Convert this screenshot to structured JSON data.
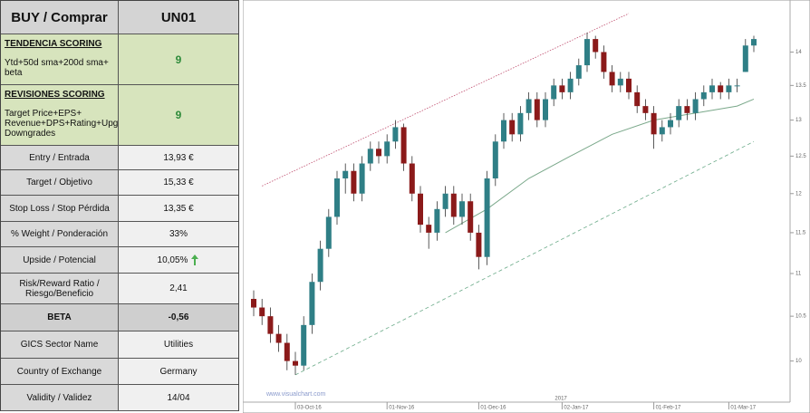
{
  "table": {
    "header": [
      "BUY / Comprar",
      "UN01"
    ],
    "scoring": [
      {
        "title": "TENDENCIA SCORING",
        "text": "Ytd+50d sma+200d  sma+ beta",
        "value": "9"
      },
      {
        "title": "REVISIONES SCORING",
        "text": "Target Price+EPS+ Revenue+DPS+Rating+Upgrades-Downgrades",
        "value": "9"
      }
    ],
    "rows": [
      [
        "Entry / Entrada",
        "13,93 €"
      ],
      [
        "Target / Objetivo",
        "15,33 €"
      ],
      [
        "Stop Loss / Stop Pérdida",
        "13,35 €"
      ],
      [
        "% Weight / Ponderación",
        "33%"
      ],
      [
        "Upside / Potencial",
        "10,05%"
      ],
      [
        "Risk/Reward  Ratio / Riesgo/Beneficio",
        "2,41"
      ],
      [
        "BETA",
        "-0,56"
      ],
      [
        "GICS Sector Name",
        "Utilities"
      ],
      [
        "Country of Exchange",
        "Germany"
      ],
      [
        "Validity / Validez",
        "14/04"
      ]
    ]
  },
  "chart_data": {
    "type": "candlestick",
    "log": true,
    "ylim": [
      9.6,
      14.7
    ],
    "yticks": [
      10,
      10.5,
      11,
      11.5,
      12,
      12.5,
      13,
      13.5,
      14
    ],
    "xticks": [
      {
        "value": 5,
        "label": "03-Oct-16"
      },
      {
        "value": 16,
        "label": "01-Nov-16"
      },
      {
        "value": 27,
        "label": "01-Dec-16"
      },
      {
        "value": 37,
        "label": "02-Jan-17"
      },
      {
        "value": 48,
        "label": "01-Feb-17"
      },
      {
        "value": 57,
        "label": "01-Mar-17"
      }
    ],
    "year_label": {
      "value": 37,
      "label": "2017"
    },
    "up_color": "#2f7f86",
    "down_color": "#8b1a1a",
    "candles": [
      [
        10.7,
        10.8,
        10.5,
        10.6
      ],
      [
        10.6,
        10.7,
        10.4,
        10.5
      ],
      [
        10.5,
        10.6,
        10.2,
        10.3
      ],
      [
        10.3,
        10.4,
        10.1,
        10.2
      ],
      [
        10.2,
        10.3,
        9.9,
        10.0
      ],
      [
        10.0,
        10.1,
        9.85,
        9.95
      ],
      [
        9.95,
        10.5,
        9.9,
        10.4
      ],
      [
        10.4,
        11.0,
        10.3,
        10.9
      ],
      [
        10.9,
        11.4,
        10.8,
        11.3
      ],
      [
        11.3,
        11.8,
        11.2,
        11.7
      ],
      [
        11.7,
        12.3,
        11.6,
        12.2
      ],
      [
        12.2,
        12.4,
        12.0,
        12.3
      ],
      [
        12.3,
        12.4,
        11.9,
        12.0
      ],
      [
        12.0,
        12.5,
        11.9,
        12.4
      ],
      [
        12.4,
        12.7,
        12.3,
        12.6
      ],
      [
        12.6,
        12.7,
        12.4,
        12.5
      ],
      [
        12.5,
        12.8,
        12.4,
        12.7
      ],
      [
        12.7,
        13.0,
        12.6,
        12.9
      ],
      [
        12.9,
        12.95,
        12.3,
        12.4
      ],
      [
        12.4,
        12.5,
        11.9,
        12.0
      ],
      [
        12.0,
        12.1,
        11.5,
        11.6
      ],
      [
        11.6,
        11.7,
        11.3,
        11.5
      ],
      [
        11.5,
        11.9,
        11.4,
        11.8
      ],
      [
        11.8,
        12.1,
        11.7,
        12.0
      ],
      [
        12.0,
        12.1,
        11.6,
        11.7
      ],
      [
        11.7,
        12.0,
        11.6,
        11.9
      ],
      [
        11.9,
        12.0,
        11.4,
        11.5
      ],
      [
        11.5,
        11.6,
        11.05,
        11.2
      ],
      [
        11.2,
        12.3,
        11.1,
        12.2
      ],
      [
        12.2,
        12.8,
        12.1,
        12.7
      ],
      [
        12.7,
        13.1,
        12.6,
        13.0
      ],
      [
        13.0,
        13.1,
        12.7,
        12.8
      ],
      [
        12.8,
        13.2,
        12.7,
        13.1
      ],
      [
        13.1,
        13.4,
        13.0,
        13.3
      ],
      [
        13.3,
        13.4,
        12.9,
        13.0
      ],
      [
        13.0,
        13.4,
        12.9,
        13.3
      ],
      [
        13.3,
        13.6,
        13.2,
        13.5
      ],
      [
        13.5,
        13.6,
        13.3,
        13.4
      ],
      [
        13.4,
        13.7,
        13.3,
        13.6
      ],
      [
        13.6,
        13.9,
        13.5,
        13.8
      ],
      [
        13.8,
        14.3,
        13.7,
        14.2
      ],
      [
        14.2,
        14.25,
        13.9,
        14.0
      ],
      [
        14.0,
        14.1,
        13.6,
        13.7
      ],
      [
        13.7,
        13.8,
        13.4,
        13.5
      ],
      [
        13.5,
        13.7,
        13.4,
        13.6
      ],
      [
        13.6,
        13.7,
        13.3,
        13.4
      ],
      [
        13.4,
        13.5,
        13.1,
        13.2
      ],
      [
        13.2,
        13.3,
        13.0,
        13.1
      ],
      [
        13.1,
        13.2,
        12.6,
        12.8
      ],
      [
        12.8,
        13.0,
        12.7,
        12.9
      ],
      [
        12.9,
        13.1,
        12.8,
        13.0
      ],
      [
        13.0,
        13.3,
        12.9,
        13.2
      ],
      [
        13.2,
        13.3,
        13.0,
        13.1
      ],
      [
        13.1,
        13.4,
        13.0,
        13.3
      ],
      [
        13.3,
        13.5,
        13.2,
        13.4
      ],
      [
        13.4,
        13.6,
        13.3,
        13.5
      ],
      [
        13.5,
        13.55,
        13.3,
        13.4
      ],
      [
        13.4,
        13.6,
        13.3,
        13.5
      ],
      [
        13.5,
        13.6,
        13.4,
        13.5
      ],
      [
        13.7,
        14.2,
        13.7,
        14.1
      ],
      [
        14.1,
        14.25,
        14.0,
        14.2
      ]
    ],
    "sma": {
      "x": [
        23,
        28,
        33,
        38,
        43,
        48,
        53,
        58,
        60
      ],
      "values": [
        11.5,
        11.8,
        12.2,
        12.5,
        12.8,
        13.0,
        13.1,
        13.2,
        13.3
      ],
      "color": "#7aa88a"
    },
    "channels": [
      {
        "x": [
          1,
          45
        ],
        "values": [
          12.1,
          14.6
        ],
        "color": "#c05070"
      },
      {
        "x": [
          5,
          60
        ],
        "values": [
          9.85,
          12.7
        ],
        "color": "#6aaa88"
      }
    ],
    "watermark": "www.visualchart.com"
  }
}
